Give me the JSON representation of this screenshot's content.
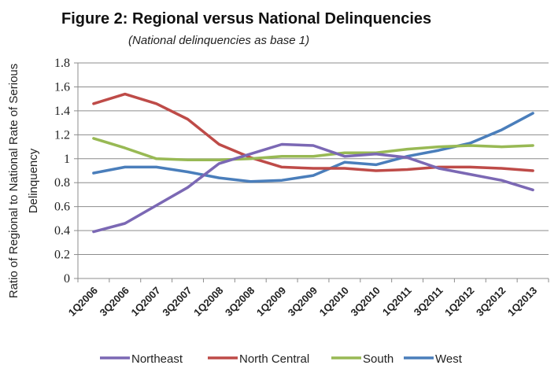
{
  "chart_data": {
    "type": "line",
    "title": "Figure 2: Regional versus National Delinquencies",
    "subtitle": "(National delinquencies as base 1)",
    "ylabel": [
      "Ratio of Regional to National Rate of Serious",
      "Delinquency"
    ],
    "xlabel": "",
    "x": [
      "1Q2006",
      "3Q2006",
      "1Q2007",
      "3Q2007",
      "1Q2008",
      "3Q2008",
      "1Q2009",
      "3Q2009",
      "1Q2010",
      "3Q2010",
      "1Q2011",
      "3Q2011",
      "1Q2012",
      "3Q2012",
      "1Q2013"
    ],
    "ylim": [
      0,
      1.8
    ],
    "yticks": [
      0,
      0.2,
      0.4,
      0.6,
      0.8,
      1,
      1.2,
      1.4,
      1.6,
      1.8
    ],
    "ytick_labels": [
      "0",
      "0.2",
      "0.4",
      "0.6",
      "0.8",
      "1",
      "1.2",
      "1.4",
      "1.6",
      "1.8"
    ],
    "grid": true,
    "legend_position": "bottom",
    "series": [
      {
        "name": "Northeast",
        "color": "#4a7ebb",
        "legend_color": "#7b68b4",
        "values": [
          0.88,
          0.93,
          0.93,
          0.89,
          0.84,
          0.81,
          0.82,
          0.86,
          0.97,
          0.95,
          1.02,
          1.07,
          1.13,
          1.24,
          1.38
        ]
      },
      {
        "name": "North Central",
        "color": "#be4b48",
        "values": [
          1.46,
          1.54,
          1.46,
          1.33,
          1.12,
          1.01,
          0.93,
          0.92,
          0.92,
          0.9,
          0.91,
          0.93,
          0.93,
          0.92,
          0.9
        ]
      },
      {
        "name": "South",
        "color": "#98b954",
        "values": [
          1.17,
          1.09,
          1.0,
          0.99,
          0.99,
          1.0,
          1.02,
          1.02,
          1.05,
          1.05,
          1.08,
          1.1,
          1.11,
          1.1,
          1.11
        ]
      },
      {
        "name": "West",
        "color": "#7b68b4",
        "legend_color": "#4a7ebb",
        "values": [
          0.39,
          0.46,
          0.61,
          0.76,
          0.96,
          1.04,
          1.12,
          1.11,
          1.02,
          1.04,
          1.01,
          0.92,
          0.87,
          0.82,
          0.74
        ]
      }
    ]
  }
}
